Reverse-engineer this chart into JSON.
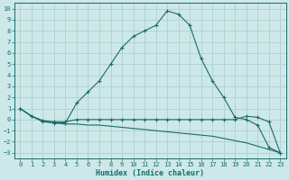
{
  "xlabel": "Humidex (Indice chaleur)",
  "background_color": "#cce8e8",
  "grid_color": "#b0d0d0",
  "line_color": "#1a6b6b",
  "xlim": [
    -0.5,
    23.5
  ],
  "ylim": [
    -3.5,
    10.5
  ],
  "xticks": [
    0,
    1,
    2,
    3,
    4,
    5,
    6,
    7,
    8,
    9,
    10,
    11,
    12,
    13,
    14,
    15,
    16,
    17,
    18,
    19,
    20,
    21,
    22,
    23
  ],
  "yticks": [
    -3,
    -2,
    -1,
    0,
    1,
    2,
    3,
    4,
    5,
    6,
    7,
    8,
    9,
    10
  ],
  "series_hump_x": [
    0,
    1,
    2,
    3,
    4,
    5,
    6,
    7,
    8,
    9,
    10,
    11,
    12,
    13,
    14,
    15,
    16,
    17,
    18,
    19,
    20,
    21,
    22,
    23
  ],
  "series_hump_y": [
    1,
    0.3,
    -0.2,
    -0.3,
    -0.3,
    1.5,
    2.5,
    3.5,
    5.0,
    6.5,
    7.5,
    8.0,
    8.5,
    9.8,
    9.5,
    8.5,
    5.5,
    3.5,
    2.0,
    0.2,
    0.0,
    -0.5,
    -2.5,
    -3.0
  ],
  "series_flat_x": [
    0,
    1,
    2,
    3,
    4,
    5,
    6,
    7,
    8,
    9,
    10,
    11,
    12,
    13,
    14,
    15,
    16,
    17,
    18,
    19,
    20,
    21,
    22,
    23
  ],
  "series_flat_y": [
    1,
    0.3,
    -0.1,
    -0.2,
    -0.2,
    0.0,
    0.0,
    0.0,
    0.0,
    0.0,
    0.0,
    0.0,
    0.0,
    0.0,
    0.0,
    0.0,
    0.0,
    0.0,
    0.0,
    0.0,
    0.3,
    0.2,
    -0.2,
    -3.0
  ],
  "series_diag_x": [
    0,
    1,
    2,
    3,
    4,
    5,
    6,
    7,
    8,
    9,
    10,
    11,
    12,
    13,
    14,
    15,
    16,
    17,
    18,
    19,
    20,
    21,
    22,
    23
  ],
  "series_diag_y": [
    1,
    0.3,
    -0.1,
    -0.3,
    -0.4,
    -0.4,
    -0.5,
    -0.5,
    -0.6,
    -0.7,
    -0.8,
    -0.9,
    -1.0,
    -1.1,
    -1.2,
    -1.3,
    -1.4,
    -1.5,
    -1.7,
    -1.9,
    -2.1,
    -2.4,
    -2.7,
    -3.0
  ]
}
